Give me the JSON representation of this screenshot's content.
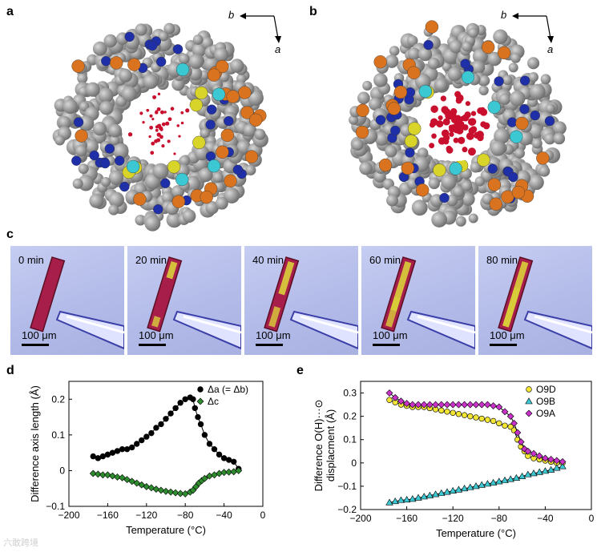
{
  "panels": {
    "a": {
      "letter": "a",
      "axis_b": "b",
      "axis_a": "a"
    },
    "b": {
      "letter": "b",
      "axis_b": "b",
      "axis_a": "a"
    },
    "c": {
      "letter": "c",
      "frames": [
        {
          "time": "0 min",
          "scale": "100 μm",
          "yellow": 0.0
        },
        {
          "time": "20 min",
          "scale": "100 μm",
          "yellow": 0.25
        },
        {
          "time": "40 min",
          "scale": "100 μm",
          "yellow": 0.5
        },
        {
          "time": "60 min",
          "scale": "100 μm",
          "yellow": 0.75
        },
        {
          "time": "80 min",
          "scale": "100 μm",
          "yellow": 1.0
        }
      ]
    },
    "d": {
      "letter": "d"
    },
    "e": {
      "letter": "e"
    }
  },
  "watermark": "六敢跨境",
  "colors": {
    "oxygen_red": "#c8102e",
    "carbon_grey": "#8e8e8e",
    "nitrogen_blue": "#1f2fa8",
    "phosphorus_orange": "#d9731f",
    "sulfur_yellow": "#d9d42a",
    "cyan": "#3cc8d2",
    "photo_bg": "#b7bfea"
  },
  "chart_data": [
    {
      "type": "scatter",
      "panel": "d",
      "xlabel": "Temperature (°C)",
      "ylabel": "Difference axis length (Å)",
      "xlim": [
        -200,
        0
      ],
      "ylim": [
        -0.1,
        0.25
      ],
      "xticks": [
        -200,
        -160,
        -120,
        -80,
        -40,
        0
      ],
      "yticks": [
        -0.1,
        0,
        0.1,
        0.2
      ],
      "xtick_labels": [
        "−200",
        "−160",
        "−120",
        "−80",
        "−40",
        "0"
      ],
      "ytick_labels": [
        "−0.1",
        "0",
        "0.1",
        "0.2"
      ],
      "legend_position": "top-right",
      "series": [
        {
          "name": "Δa (= Δb)",
          "marker": "circle",
          "color": "#000000",
          "x": [
            -175,
            -170,
            -165,
            -160,
            -155,
            -150,
            -145,
            -140,
            -135,
            -130,
            -125,
            -120,
            -115,
            -110,
            -105,
            -100,
            -95,
            -90,
            -85,
            -80,
            -75,
            -72,
            -70,
            -67,
            -64,
            -60,
            -55,
            -50,
            -45,
            -40,
            -35,
            -30,
            -25
          ],
          "y": [
            0.04,
            0.035,
            0.04,
            0.045,
            0.05,
            0.055,
            0.06,
            0.06,
            0.065,
            0.075,
            0.085,
            0.095,
            0.105,
            0.12,
            0.13,
            0.145,
            0.16,
            0.175,
            0.19,
            0.2,
            0.205,
            0.2,
            0.175,
            0.15,
            0.13,
            0.1,
            0.075,
            0.06,
            0.045,
            0.035,
            0.03,
            0.025,
            0.005
          ]
        },
        {
          "name": "Δc",
          "marker": "diamond",
          "color": "#2e8b2e",
          "x": [
            -175,
            -170,
            -165,
            -160,
            -155,
            -150,
            -145,
            -140,
            -135,
            -130,
            -125,
            -120,
            -115,
            -110,
            -105,
            -100,
            -95,
            -90,
            -85,
            -80,
            -75,
            -72,
            -69,
            -66,
            -63,
            -60,
            -55,
            -50,
            -45,
            -40,
            -35,
            -30,
            -25
          ],
          "y": [
            -0.008,
            -0.01,
            -0.012,
            -0.012,
            -0.015,
            -0.018,
            -0.02,
            -0.025,
            -0.03,
            -0.035,
            -0.04,
            -0.045,
            -0.048,
            -0.052,
            -0.055,
            -0.058,
            -0.06,
            -0.062,
            -0.064,
            -0.065,
            -0.06,
            -0.055,
            -0.045,
            -0.035,
            -0.028,
            -0.022,
            -0.015,
            -0.012,
            -0.008,
            -0.005,
            -0.004,
            -0.003,
            0.0
          ]
        }
      ]
    },
    {
      "type": "scatter",
      "panel": "e",
      "xlabel": "Temperature (°C)",
      "ylabel_line1": "Difference O(H)···⊙",
      "ylabel_line2": "displacment (Å)",
      "xlim": [
        -200,
        0
      ],
      "ylim": [
        -0.2,
        0.35
      ],
      "xticks": [
        -200,
        -160,
        -120,
        -80,
        -40,
        0
      ],
      "yticks": [
        -0.2,
        -0.1,
        0,
        0.1,
        0.2,
        0.3
      ],
      "xtick_labels": [
        "−200",
        "−160",
        "−120",
        "−80",
        "−40",
        "0"
      ],
      "ytick_labels": [
        "−0.2",
        "−0.1",
        "0",
        "0.1",
        "0.2",
        "0.3"
      ],
      "legend_position": "top-right",
      "series": [
        {
          "name": "O9D",
          "marker": "circle",
          "color": "#f2e533",
          "x": [
            -175,
            -170,
            -165,
            -160,
            -155,
            -150,
            -145,
            -140,
            -135,
            -130,
            -125,
            -120,
            -115,
            -110,
            -105,
            -100,
            -95,
            -90,
            -85,
            -80,
            -75,
            -70,
            -67,
            -64,
            -61,
            -58,
            -55,
            -50,
            -45,
            -40,
            -35,
            -30,
            -25
          ],
          "y": [
            0.27,
            0.26,
            0.25,
            0.245,
            0.24,
            0.24,
            0.24,
            0.235,
            0.23,
            0.225,
            0.22,
            0.215,
            0.21,
            0.205,
            0.2,
            0.195,
            0.19,
            0.185,
            0.18,
            0.17,
            0.16,
            0.155,
            0.14,
            0.1,
            0.07,
            0.05,
            0.03,
            0.02,
            0.015,
            0.01,
            0.005,
            0.0,
            0.0
          ]
        },
        {
          "name": "O9B",
          "marker": "triangle",
          "color": "#3cc8d2",
          "x": [
            -175,
            -170,
            -165,
            -160,
            -155,
            -150,
            -145,
            -140,
            -135,
            -130,
            -125,
            -120,
            -115,
            -110,
            -105,
            -100,
            -95,
            -90,
            -85,
            -80,
            -75,
            -70,
            -65,
            -60,
            -55,
            -50,
            -45,
            -40,
            -35,
            -30,
            -25
          ],
          "y": [
            -0.17,
            -0.165,
            -0.16,
            -0.158,
            -0.155,
            -0.15,
            -0.145,
            -0.14,
            -0.135,
            -0.13,
            -0.125,
            -0.12,
            -0.115,
            -0.11,
            -0.105,
            -0.1,
            -0.095,
            -0.09,
            -0.085,
            -0.08,
            -0.075,
            -0.07,
            -0.065,
            -0.058,
            -0.05,
            -0.045,
            -0.04,
            -0.035,
            -0.03,
            -0.022,
            -0.015
          ]
        },
        {
          "name": "O9A",
          "marker": "diamond",
          "color": "#c832c8",
          "x": [
            -175,
            -170,
            -165,
            -160,
            -155,
            -150,
            -145,
            -140,
            -135,
            -130,
            -125,
            -120,
            -115,
            -110,
            -105,
            -100,
            -95,
            -90,
            -85,
            -80,
            -75,
            -70,
            -67,
            -64,
            -61,
            -58,
            -55,
            -50,
            -45,
            -40,
            -35,
            -30,
            -25
          ],
          "y": [
            0.3,
            0.28,
            0.265,
            0.255,
            0.25,
            0.25,
            0.25,
            0.25,
            0.25,
            0.25,
            0.25,
            0.25,
            0.25,
            0.25,
            0.25,
            0.25,
            0.25,
            0.25,
            0.245,
            0.24,
            0.22,
            0.2,
            0.17,
            0.13,
            0.09,
            0.06,
            0.05,
            0.04,
            0.03,
            0.02,
            0.015,
            0.01,
            0.005
          ]
        }
      ]
    }
  ]
}
